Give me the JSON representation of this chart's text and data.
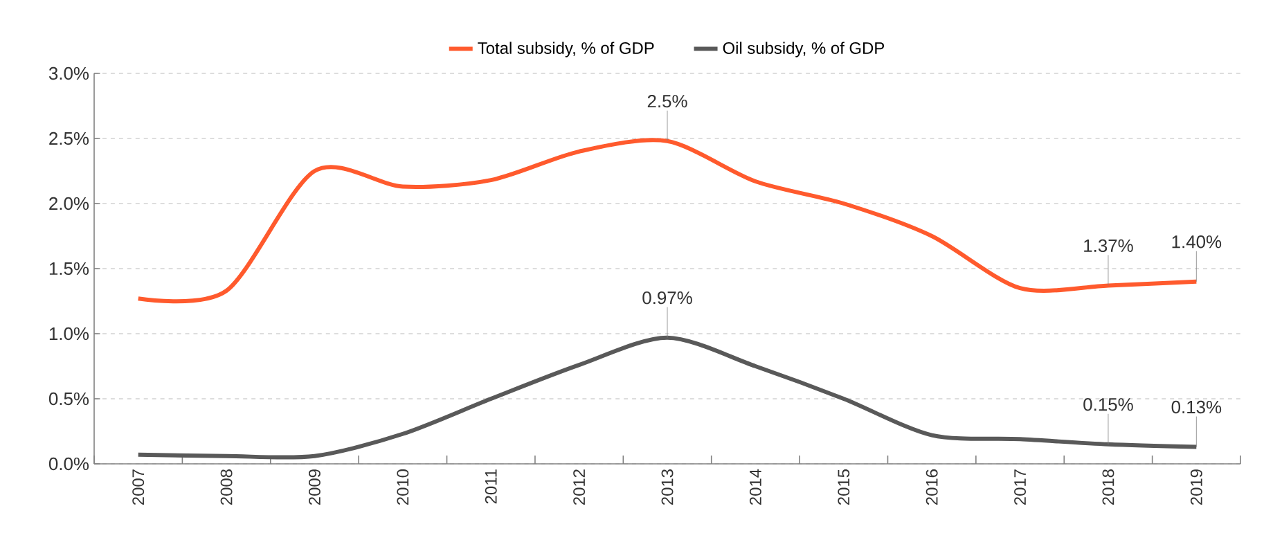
{
  "chart_data": {
    "type": "line",
    "categories": [
      "2007",
      "2008",
      "2009",
      "2010",
      "2011",
      "2012",
      "2013",
      "2014",
      "2015",
      "2016",
      "2017",
      "2018",
      "2019"
    ],
    "series": [
      {
        "name": "Total subsidy, % of GDP",
        "color": "#ff5a2d",
        "values": [
          1.27,
          1.33,
          2.25,
          2.13,
          2.18,
          2.4,
          2.48,
          2.17,
          2.0,
          1.75,
          1.35,
          1.37,
          1.4
        ],
        "value_labels": [
          null,
          null,
          null,
          null,
          null,
          null,
          "2.5%",
          null,
          null,
          null,
          null,
          "1.37%",
          "1.40%"
        ]
      },
      {
        "name": "Oil subsidy, % of GDP",
        "color": "#595959",
        "values": [
          0.07,
          0.06,
          0.06,
          0.23,
          0.5,
          0.76,
          0.97,
          0.75,
          0.5,
          0.22,
          0.19,
          0.15,
          0.13
        ],
        "value_labels": [
          null,
          null,
          null,
          null,
          null,
          null,
          "0.97%",
          null,
          null,
          null,
          null,
          "0.15%",
          "0.13%"
        ]
      }
    ],
    "ylim": [
      0,
      3.0
    ],
    "yticks": [
      {
        "value": 0,
        "label": "0.0%"
      },
      {
        "value": 0.5,
        "label": "0.5%"
      },
      {
        "value": 1.0,
        "label": "1.0%"
      },
      {
        "value": 1.5,
        "label": "1.5%"
      },
      {
        "value": 2.0,
        "label": "2.0%"
      },
      {
        "value": 2.5,
        "label": "2.5%"
      },
      {
        "value": 3.0,
        "label": "3.0%"
      }
    ],
    "grid": "y",
    "legend": "top",
    "marker": "none",
    "line_style": "solid"
  }
}
